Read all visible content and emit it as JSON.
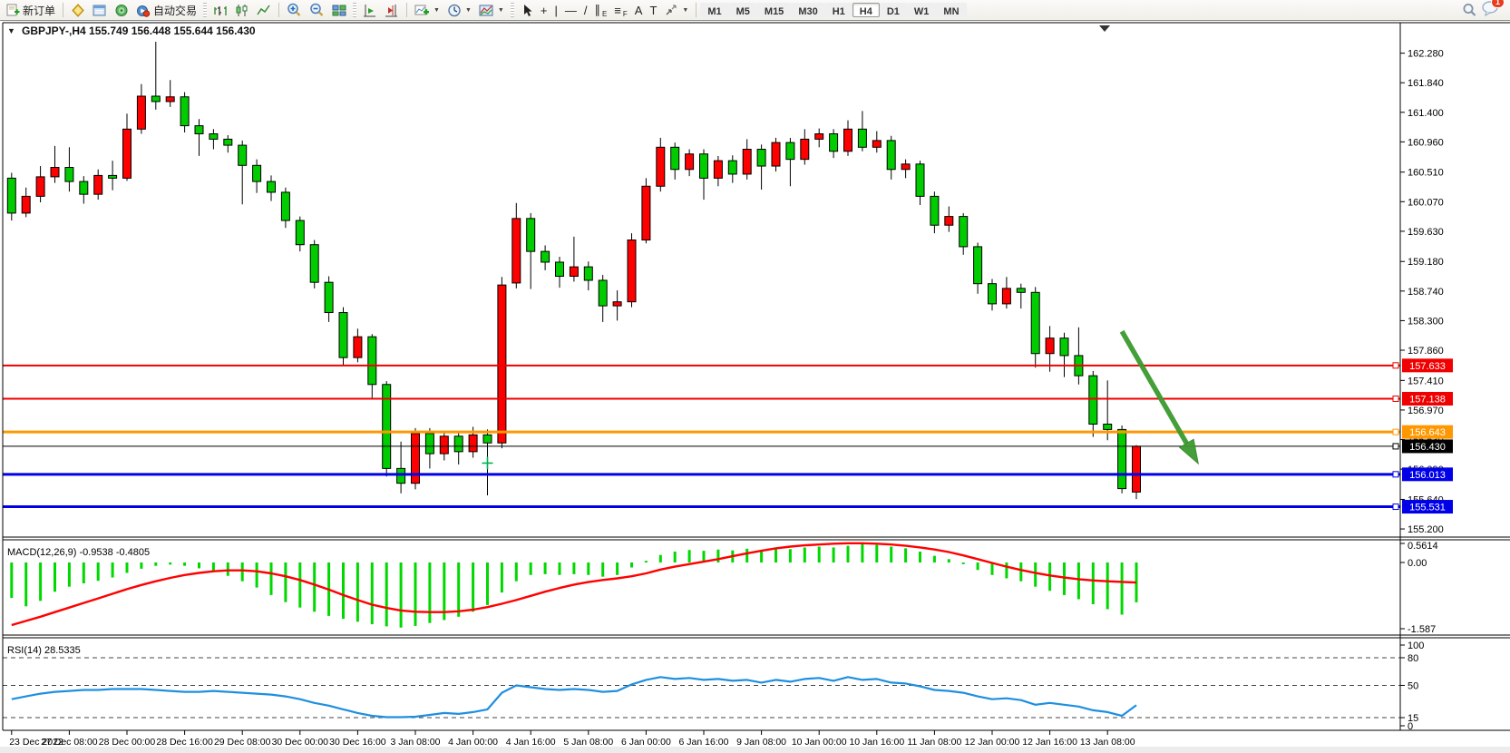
{
  "toolbar": {
    "new_order_label": "新订单",
    "autotrading_label": "自动交易",
    "timeframes": [
      "M1",
      "M5",
      "M15",
      "M30",
      "H1",
      "H4",
      "D1",
      "W1",
      "MN"
    ],
    "active_timeframe": "H4",
    "draw_tools": [
      {
        "name": "cursor",
        "glyph": ""
      },
      {
        "name": "crosshair",
        "glyph": "+"
      },
      {
        "name": "vertical-line",
        "glyph": "|"
      },
      {
        "name": "horizontal-line",
        "glyph": "—"
      },
      {
        "name": "trendline",
        "glyph": "/"
      },
      {
        "name": "equidistant-channel",
        "glyph": "∥",
        "sub": "E"
      },
      {
        "name": "fibonacci-retracement",
        "glyph": "≡",
        "sub": "F"
      },
      {
        "name": "text",
        "glyph": "A"
      },
      {
        "name": "text-label",
        "glyph": "T"
      }
    ],
    "notification_count": "1"
  },
  "chart": {
    "collapse_glyph": "▼",
    "title_symbol": "GBPJPY-,H4",
    "ohlc_text": "155.749 156.448 155.644 156.430"
  },
  "indicators": {
    "macd": {
      "label": "MACD(12,26,9)",
      "values_text": "-0.9538 -0.4805",
      "axis": [
        {
          "v": 0.5614,
          "label": "0.5614"
        },
        {
          "v": 0,
          "label": "0.00"
        },
        {
          "v": -1.587,
          "label": "-1.587"
        }
      ]
    },
    "rsi": {
      "label": "RSI(14)",
      "values_text": "28.5335",
      "axis": [
        {
          "v": 100,
          "label": "100"
        },
        {
          "v": 80,
          "label": "80"
        },
        {
          "v": 50,
          "label": "50"
        },
        {
          "v": 15,
          "label": "15"
        },
        {
          "v": 0,
          "label": "0"
        }
      ],
      "levels": [
        80,
        50,
        15
      ]
    }
  },
  "chart_data": {
    "type": "candlestick",
    "symbol": "GBPJPY-",
    "timeframe": "H4",
    "price_axis_ticks": [
      "162.280",
      "161.840",
      "161.400",
      "160.960",
      "160.510",
      "160.070",
      "159.630",
      "159.180",
      "158.740",
      "158.300",
      "157.860",
      "157.410",
      "156.970",
      "156.530",
      "156.090",
      "155.640",
      "155.200"
    ],
    "time_labels": [
      "23 Dec 2022",
      "27 Dec 08:00",
      "28 Dec 00:00",
      "28 Dec 16:00",
      "29 Dec 08:00",
      "30 Dec 00:00",
      "30 Dec 16:00",
      "3 Jan 08:00",
      "4 Jan 00:00",
      "4 Jan 16:00",
      "5 Jan 08:00",
      "6 Jan 00:00",
      "6 Jan 16:00",
      "9 Jan 08:00",
      "10 Jan 00:00",
      "10 Jan 16:00",
      "11 Jan 08:00",
      "12 Jan 00:00",
      "12 Jan 16:00",
      "13 Jan 08:00"
    ],
    "time_label_every": 4,
    "candles": [
      [
        160.42,
        160.5,
        159.79,
        159.9
      ],
      [
        159.9,
        160.28,
        159.84,
        160.15
      ],
      [
        160.15,
        160.6,
        160.06,
        160.44
      ],
      [
        160.44,
        160.9,
        160.35,
        160.58
      ],
      [
        160.58,
        160.88,
        160.22,
        160.37
      ],
      [
        160.37,
        160.45,
        160.04,
        160.18
      ],
      [
        160.18,
        160.55,
        160.1,
        160.46
      ],
      [
        160.46,
        160.68,
        160.24,
        160.42
      ],
      [
        160.42,
        161.38,
        160.38,
        161.15
      ],
      [
        161.15,
        161.82,
        161.08,
        161.64
      ],
      [
        161.64,
        162.45,
        161.44,
        161.56
      ],
      [
        161.56,
        161.88,
        161.48,
        161.63
      ],
      [
        161.63,
        161.7,
        161.1,
        161.2
      ],
      [
        161.2,
        161.3,
        160.75,
        161.08
      ],
      [
        161.08,
        161.15,
        160.85,
        161.0
      ],
      [
        161.0,
        161.06,
        160.8,
        160.91
      ],
      [
        160.91,
        160.98,
        160.03,
        160.61
      ],
      [
        160.61,
        160.7,
        160.2,
        160.37
      ],
      [
        160.37,
        160.46,
        160.08,
        160.21
      ],
      [
        160.21,
        160.28,
        159.68,
        159.79
      ],
      [
        159.79,
        159.85,
        159.33,
        159.43
      ],
      [
        159.43,
        159.5,
        158.78,
        158.87
      ],
      [
        158.87,
        158.96,
        158.28,
        158.42
      ],
      [
        158.42,
        158.5,
        157.63,
        157.75
      ],
      [
        157.75,
        158.18,
        157.68,
        158.06
      ],
      [
        158.06,
        158.1,
        157.15,
        157.35
      ],
      [
        157.35,
        157.4,
        155.98,
        156.1
      ],
      [
        156.1,
        156.5,
        155.73,
        155.88
      ],
      [
        155.88,
        156.7,
        155.79,
        156.62
      ],
      [
        156.62,
        156.7,
        156.1,
        156.32
      ],
      [
        156.32,
        156.66,
        156.22,
        156.58
      ],
      [
        156.58,
        156.65,
        156.16,
        156.35
      ],
      [
        156.35,
        156.72,
        156.26,
        156.6
      ],
      [
        156.6,
        156.68,
        155.7,
        156.48
      ],
      [
        156.48,
        158.95,
        156.4,
        158.83
      ],
      [
        158.86,
        160.05,
        158.78,
        159.82
      ],
      [
        159.82,
        159.9,
        158.77,
        159.33
      ],
      [
        159.33,
        159.42,
        159.05,
        159.17
      ],
      [
        159.17,
        159.25,
        158.79,
        158.96
      ],
      [
        158.96,
        159.55,
        158.88,
        159.1
      ],
      [
        159.1,
        159.18,
        158.75,
        158.9
      ],
      [
        158.9,
        158.98,
        158.28,
        158.52
      ],
      [
        158.52,
        158.75,
        158.3,
        158.58
      ],
      [
        158.58,
        159.6,
        158.5,
        159.5
      ],
      [
        159.5,
        160.42,
        159.45,
        160.3
      ],
      [
        160.3,
        161.02,
        160.22,
        160.88
      ],
      [
        160.88,
        160.95,
        160.4,
        160.55
      ],
      [
        160.55,
        160.85,
        160.45,
        160.78
      ],
      [
        160.78,
        160.85,
        160.1,
        160.42
      ],
      [
        160.42,
        160.75,
        160.3,
        160.68
      ],
      [
        160.68,
        160.76,
        160.35,
        160.48
      ],
      [
        160.48,
        161.0,
        160.4,
        160.85
      ],
      [
        160.85,
        160.92,
        160.25,
        160.6
      ],
      [
        160.6,
        161.02,
        160.52,
        160.95
      ],
      [
        160.95,
        161.02,
        160.3,
        160.7
      ],
      [
        160.7,
        161.15,
        160.62,
        161.0
      ],
      [
        161.0,
        161.16,
        160.88,
        161.08
      ],
      [
        161.08,
        161.15,
        160.72,
        160.82
      ],
      [
        160.82,
        161.28,
        160.75,
        161.15
      ],
      [
        161.15,
        161.42,
        160.82,
        160.88
      ],
      [
        160.88,
        161.12,
        160.8,
        160.98
      ],
      [
        160.98,
        161.05,
        160.4,
        160.55
      ],
      [
        160.55,
        160.7,
        160.42,
        160.63
      ],
      [
        160.63,
        160.68,
        160.02,
        160.15
      ],
      [
        160.15,
        160.22,
        159.6,
        159.72
      ],
      [
        159.72,
        160.0,
        159.62,
        159.85
      ],
      [
        159.85,
        159.9,
        159.28,
        159.4
      ],
      [
        159.4,
        159.46,
        158.7,
        158.85
      ],
      [
        158.85,
        158.92,
        158.45,
        158.55
      ],
      [
        158.55,
        158.95,
        158.48,
        158.78
      ],
      [
        158.78,
        158.85,
        158.48,
        158.72
      ],
      [
        158.72,
        158.8,
        157.6,
        157.81
      ],
      [
        157.81,
        158.22,
        157.54,
        158.04
      ],
      [
        158.04,
        158.12,
        157.46,
        157.78
      ],
      [
        157.78,
        158.2,
        157.35,
        157.48
      ],
      [
        157.48,
        157.55,
        156.57,
        156.76
      ],
      [
        156.76,
        157.41,
        156.52,
        156.68
      ],
      [
        156.68,
        156.74,
        155.73,
        155.8
      ],
      [
        155.749,
        156.448,
        155.644,
        156.43
      ]
    ],
    "hlines": [
      {
        "price": 157.633,
        "label": "157.633",
        "color": "#f00000",
        "width": 2
      },
      {
        "price": 157.138,
        "label": "157.138",
        "color": "#f00000",
        "width": 2
      },
      {
        "price": 156.643,
        "label": "156.643",
        "color": "#ff9800",
        "width": 3
      },
      {
        "price": 156.43,
        "label": "156.430",
        "color": "#000000",
        "width": 1
      },
      {
        "price": 156.013,
        "label": "156.013",
        "color": "#0000e8",
        "width": 3
      },
      {
        "price": 155.531,
        "label": "155.531",
        "color": "#0000e8",
        "width": 3
      }
    ],
    "macd_histogram": [
      -0.85,
      -1.05,
      -0.92,
      -0.7,
      -0.58,
      -0.5,
      -0.44,
      -0.36,
      -0.25,
      -0.15,
      -0.08,
      -0.05,
      -0.08,
      -0.14,
      -0.22,
      -0.32,
      -0.45,
      -0.6,
      -0.78,
      -0.95,
      -1.08,
      -1.18,
      -1.28,
      -1.35,
      -1.42,
      -1.48,
      -1.53,
      -1.56,
      -1.52,
      -1.45,
      -1.38,
      -1.3,
      -1.18,
      -1.02,
      -0.72,
      -0.45,
      -0.3,
      -0.28,
      -0.3,
      -0.28,
      -0.3,
      -0.34,
      -0.3,
      -0.12,
      0.04,
      0.18,
      0.26,
      0.3,
      0.28,
      0.31,
      0.29,
      0.33,
      0.3,
      0.34,
      0.32,
      0.36,
      0.38,
      0.36,
      0.4,
      0.44,
      0.42,
      0.38,
      0.34,
      0.26,
      0.16,
      0.08,
      -0.04,
      -0.18,
      -0.3,
      -0.38,
      -0.45,
      -0.58,
      -0.68,
      -0.78,
      -0.88,
      -1.0,
      -1.12,
      -1.25,
      -0.9538
    ],
    "macd_signal": [
      -1.5,
      -1.4,
      -1.3,
      -1.19,
      -1.08,
      -0.97,
      -0.86,
      -0.75,
      -0.64,
      -0.54,
      -0.45,
      -0.37,
      -0.3,
      -0.25,
      -0.21,
      -0.19,
      -0.19,
      -0.21,
      -0.26,
      -0.33,
      -0.42,
      -0.53,
      -0.65,
      -0.78,
      -0.9,
      -1.01,
      -1.09,
      -1.15,
      -1.18,
      -1.19,
      -1.19,
      -1.17,
      -1.13,
      -1.07,
      -0.99,
      -0.9,
      -0.8,
      -0.7,
      -0.61,
      -0.53,
      -0.47,
      -0.42,
      -0.38,
      -0.33,
      -0.26,
      -0.17,
      -0.1,
      -0.04,
      0.02,
      0.08,
      0.15,
      0.22,
      0.28,
      0.34,
      0.38,
      0.41,
      0.43,
      0.45,
      0.46,
      0.46,
      0.45,
      0.43,
      0.4,
      0.36,
      0.31,
      0.25,
      0.17,
      0.08,
      -0.01,
      -0.1,
      -0.18,
      -0.25,
      -0.31,
      -0.36,
      -0.4,
      -0.43,
      -0.45,
      -0.465,
      -0.4805
    ],
    "rsi_values": [
      35,
      38,
      41,
      43,
      44,
      45,
      45,
      46,
      46,
      46,
      45,
      44,
      43,
      43,
      44,
      43,
      42,
      41,
      40,
      38,
      35,
      31,
      28,
      24,
      20,
      17,
      15.5,
      15.5,
      16,
      18,
      20,
      19,
      21,
      24,
      42,
      50,
      48,
      46,
      45,
      46,
      45,
      43,
      44,
      51,
      56,
      59,
      57,
      58,
      56,
      57,
      55,
      56,
      53,
      56,
      54,
      57,
      58,
      55,
      59,
      56,
      57,
      53,
      52,
      49,
      45,
      44,
      42,
      38,
      35,
      36,
      34,
      29,
      31,
      29,
      27,
      23,
      21,
      17,
      28.5
    ],
    "annotations": {
      "trend_arrow": {
        "from_bar": 77.0,
        "from_price": 158.14,
        "to_bar": 82.3,
        "to_price": 156.17,
        "color": "#3c9a2f"
      },
      "buy_marker": {
        "bar": 33,
        "price": 156.18,
        "color": "#00b050",
        "shape": "plus"
      },
      "chart_shift_marker_bar": 75.8
    },
    "colors": {
      "bull": "#ff0000",
      "bear": "#00cc00",
      "wick": "#000000",
      "macd_hist": "#00d800",
      "macd_signal": "#ff0000",
      "rsi_line": "#1e8fe0"
    }
  }
}
